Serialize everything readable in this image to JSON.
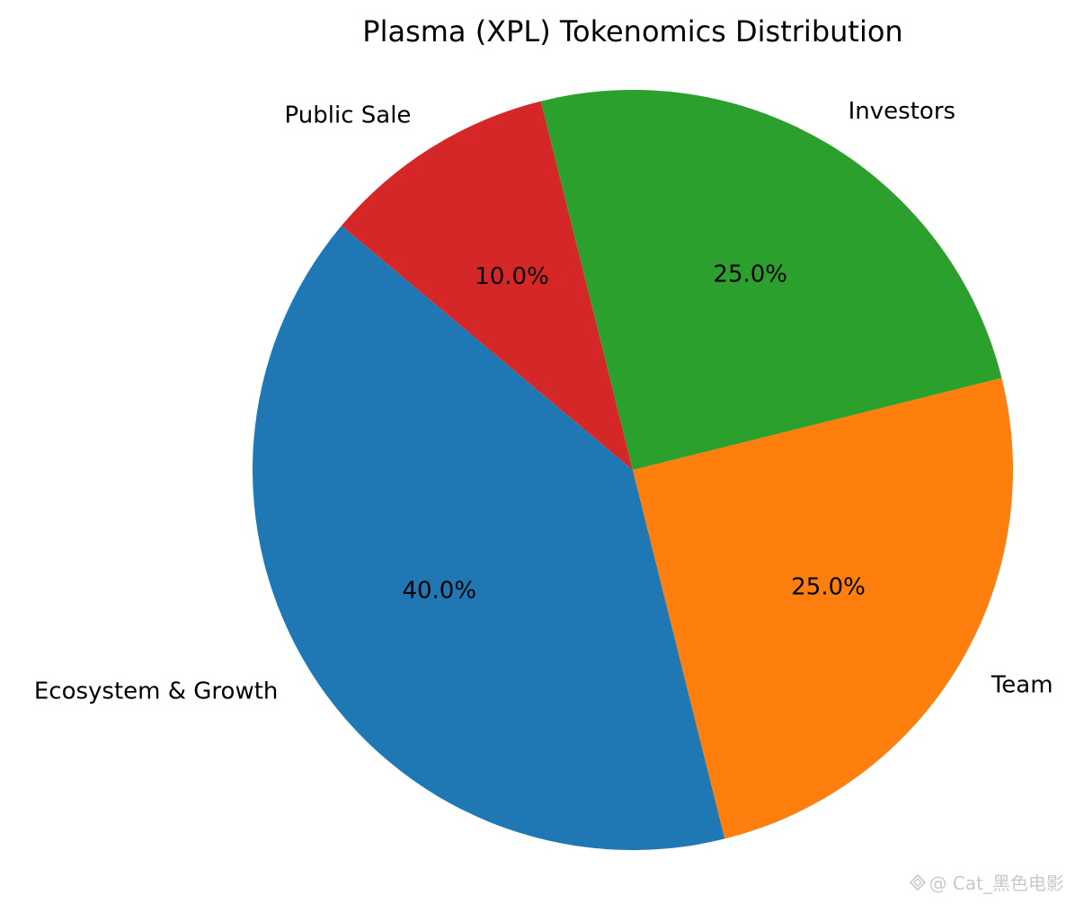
{
  "chart_data": {
    "type": "pie",
    "title": "Plasma (XPL) Tokenomics Distribution",
    "slices": [
      {
        "label": "Ecosystem & Growth",
        "value": 40.0,
        "pct_label": "40.0%",
        "color": "#1f77b4"
      },
      {
        "label": "Team",
        "value": 25.0,
        "pct_label": "25.0%",
        "color": "#ff7f0e"
      },
      {
        "label": "Investors",
        "value": 25.0,
        "pct_label": "25.0%",
        "color": "#2ca02c"
      },
      {
        "label": "Public Sale",
        "value": 10.0,
        "pct_label": "10.0%",
        "color": "#d62728"
      }
    ],
    "start_angle_deg": 140,
    "direction": "counterclockwise"
  },
  "watermark": {
    "text": "@ Cat_黑色电影",
    "icon": "diamond-logo-icon"
  }
}
